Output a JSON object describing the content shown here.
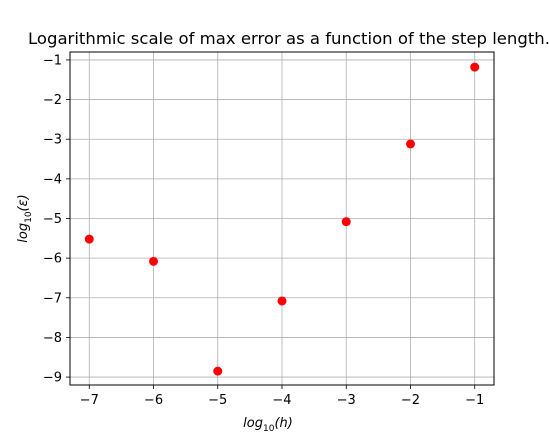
{
  "chart_data": {
    "type": "scatter",
    "title": "Logarithmic scale of max error as a function of the step length.",
    "xlabel": {
      "base": "log",
      "sub": "10",
      "arg": "(h)"
    },
    "ylabel": {
      "base": "log",
      "sub": "10",
      "arg": "(ε)"
    },
    "xlim": [
      -7.3,
      -0.7
    ],
    "ylim": [
      -9.2,
      -0.8
    ],
    "xticks": [
      -7,
      -6,
      -5,
      -4,
      -3,
      -2,
      -1
    ],
    "yticks": [
      -1,
      -2,
      -3,
      -4,
      -5,
      -6,
      -7,
      -8,
      -9
    ],
    "xtick_labels": [
      "−7",
      "−6",
      "−5",
      "−4",
      "−3",
      "−2",
      "−1"
    ],
    "ytick_labels": [
      "−1",
      "−2",
      "−3",
      "−4",
      "−5",
      "−6",
      "−7",
      "−8",
      "−9"
    ],
    "grid": true,
    "marker_color": "#ff0000",
    "points": [
      {
        "x": -7,
        "y": -5.52
      },
      {
        "x": -6,
        "y": -6.08
      },
      {
        "x": -5,
        "y": -8.85
      },
      {
        "x": -4,
        "y": -7.08
      },
      {
        "x": -3,
        "y": -5.08
      },
      {
        "x": -2,
        "y": -3.12
      },
      {
        "x": -1,
        "y": -1.18
      }
    ]
  }
}
